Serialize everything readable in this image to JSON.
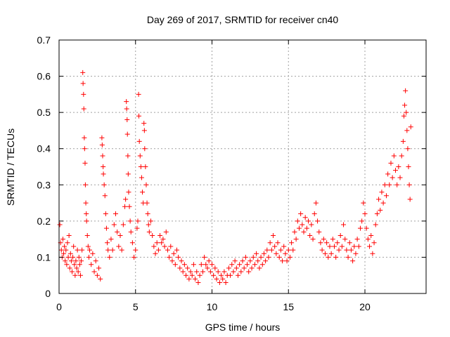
{
  "chart_data": {
    "type": "scatter",
    "title": "Day 269 of 2017, SRMTID for receiver cn40",
    "xlabel": "GPS time / hours",
    "ylabel": "SRMTID / TECUs",
    "xlim": [
      0,
      24
    ],
    "ylim": [
      0,
      0.7
    ],
    "xticks": [
      0,
      5,
      10,
      15,
      20
    ],
    "yticks": [
      0,
      0.1,
      0.2,
      0.3,
      0.4,
      0.5,
      0.6,
      0.7
    ],
    "xtick_labels": [
      "0",
      "5",
      "10",
      "15",
      "20"
    ],
    "ytick_labels": [
      "0",
      "0.1",
      "0.2",
      "0.3",
      "0.4",
      "0.5",
      "0.6",
      "0.7"
    ],
    "grid": true,
    "marker": "+",
    "colors": {
      "series": "#ff0000",
      "grid": "#a0a0a0",
      "axis": "#000000"
    },
    "series": [
      {
        "name": "SRMTID",
        "points": [
          [
            0.05,
            0.19
          ],
          [
            0.1,
            0.14
          ],
          [
            0.15,
            0.12
          ],
          [
            0.2,
            0.1
          ],
          [
            0.25,
            0.15
          ],
          [
            0.3,
            0.11
          ],
          [
            0.35,
            0.13
          ],
          [
            0.4,
            0.09
          ],
          [
            0.45,
            0.12
          ],
          [
            0.5,
            0.08
          ],
          [
            0.55,
            0.14
          ],
          [
            0.6,
            0.1
          ],
          [
            0.65,
            0.16
          ],
          [
            0.7,
            0.07
          ],
          [
            0.75,
            0.11
          ],
          [
            0.8,
            0.09
          ],
          [
            0.85,
            0.06
          ],
          [
            0.9,
            0.1
          ],
          [
            0.95,
            0.13
          ],
          [
            1.0,
            0.08
          ],
          [
            1.05,
            0.05
          ],
          [
            1.1,
            0.09
          ],
          [
            1.15,
            0.07
          ],
          [
            1.2,
            0.12
          ],
          [
            1.25,
            0.06
          ],
          [
            1.3,
            0.1
          ],
          [
            1.35,
            0.08
          ],
          [
            1.4,
            0.05
          ],
          [
            1.45,
            0.09
          ],
          [
            1.5,
            0.12
          ],
          [
            1.55,
            0.61
          ],
          [
            1.57,
            0.58
          ],
          [
            1.6,
            0.55
          ],
          [
            1.62,
            0.51
          ],
          [
            1.65,
            0.43
          ],
          [
            1.67,
            0.4
          ],
          [
            1.7,
            0.36
          ],
          [
            1.72,
            0.3
          ],
          [
            1.75,
            0.25
          ],
          [
            1.78,
            0.22
          ],
          [
            1.8,
            0.2
          ],
          [
            1.85,
            0.16
          ],
          [
            1.9,
            0.13
          ],
          [
            1.95,
            0.1
          ],
          [
            2.0,
            0.12
          ],
          [
            2.1,
            0.08
          ],
          [
            2.2,
            0.11
          ],
          [
            2.3,
            0.06
          ],
          [
            2.4,
            0.09
          ],
          [
            2.5,
            0.05
          ],
          [
            2.6,
            0.07
          ],
          [
            2.7,
            0.04
          ],
          [
            2.8,
            0.43
          ],
          [
            2.82,
            0.41
          ],
          [
            2.85,
            0.38
          ],
          [
            2.88,
            0.35
          ],
          [
            2.9,
            0.33
          ],
          [
            2.95,
            0.3
          ],
          [
            3.0,
            0.27
          ],
          [
            3.05,
            0.22
          ],
          [
            3.1,
            0.18
          ],
          [
            3.15,
            0.14
          ],
          [
            3.2,
            0.12
          ],
          [
            3.3,
            0.1
          ],
          [
            3.4,
            0.15
          ],
          [
            3.5,
            0.12
          ],
          [
            3.6,
            0.19
          ],
          [
            3.7,
            0.22
          ],
          [
            3.8,
            0.17
          ],
          [
            3.9,
            0.13
          ],
          [
            4.0,
            0.16
          ],
          [
            4.1,
            0.12
          ],
          [
            4.2,
            0.19
          ],
          [
            4.3,
            0.24
          ],
          [
            4.35,
            0.26
          ],
          [
            4.4,
            0.53
          ],
          [
            4.42,
            0.51
          ],
          [
            4.45,
            0.48
          ],
          [
            4.47,
            0.44
          ],
          [
            4.5,
            0.38
          ],
          [
            4.52,
            0.33
          ],
          [
            4.55,
            0.28
          ],
          [
            4.6,
            0.24
          ],
          [
            4.65,
            0.2
          ],
          [
            4.7,
            0.17
          ],
          [
            4.8,
            0.14
          ],
          [
            4.9,
            0.1
          ],
          [
            5.0,
            0.12
          ],
          [
            5.1,
            0.18
          ],
          [
            5.15,
            0.2
          ],
          [
            5.2,
            0.55
          ],
          [
            5.22,
            0.49
          ],
          [
            5.25,
            0.42
          ],
          [
            5.3,
            0.38
          ],
          [
            5.35,
            0.35
          ],
          [
            5.4,
            0.32
          ],
          [
            5.45,
            0.28
          ],
          [
            5.5,
            0.25
          ],
          [
            5.55,
            0.47
          ],
          [
            5.58,
            0.45
          ],
          [
            5.6,
            0.4
          ],
          [
            5.65,
            0.35
          ],
          [
            5.7,
            0.3
          ],
          [
            5.75,
            0.25
          ],
          [
            5.8,
            0.22
          ],
          [
            5.85,
            0.19
          ],
          [
            5.9,
            0.17
          ],
          [
            6.0,
            0.2
          ],
          [
            6.1,
            0.16
          ],
          [
            6.2,
            0.13
          ],
          [
            6.3,
            0.11
          ],
          [
            6.4,
            0.14
          ],
          [
            6.5,
            0.12
          ],
          [
            6.6,
            0.16
          ],
          [
            6.7,
            0.14
          ],
          [
            6.8,
            0.15
          ],
          [
            6.9,
            0.13
          ],
          [
            7.0,
            0.17
          ],
          [
            7.1,
            0.12
          ],
          [
            7.2,
            0.1
          ],
          [
            7.3,
            0.13
          ],
          [
            7.4,
            0.09
          ],
          [
            7.5,
            0.11
          ],
          [
            7.6,
            0.08
          ],
          [
            7.7,
            0.12
          ],
          [
            7.8,
            0.1
          ],
          [
            7.9,
            0.07
          ],
          [
            8.0,
            0.09
          ],
          [
            8.1,
            0.06
          ],
          [
            8.2,
            0.08
          ],
          [
            8.3,
            0.05
          ],
          [
            8.4,
            0.07
          ],
          [
            8.5,
            0.04
          ],
          [
            8.6,
            0.06
          ],
          [
            8.7,
            0.05
          ],
          [
            8.8,
            0.08
          ],
          [
            8.9,
            0.04
          ],
          [
            9.0,
            0.06
          ],
          [
            9.1,
            0.03
          ],
          [
            9.2,
            0.05
          ],
          [
            9.3,
            0.08
          ],
          [
            9.4,
            0.06
          ],
          [
            9.5,
            0.1
          ],
          [
            9.6,
            0.08
          ],
          [
            9.7,
            0.07
          ],
          [
            9.8,
            0.09
          ],
          [
            9.9,
            0.06
          ],
          [
            10.0,
            0.08
          ],
          [
            10.1,
            0.05
          ],
          [
            10.2,
            0.07
          ],
          [
            10.3,
            0.04
          ],
          [
            10.4,
            0.06
          ],
          [
            10.5,
            0.03
          ],
          [
            10.6,
            0.05
          ],
          [
            10.7,
            0.04
          ],
          [
            10.8,
            0.06
          ],
          [
            10.9,
            0.03
          ],
          [
            11.0,
            0.05
          ],
          [
            11.1,
            0.07
          ],
          [
            11.2,
            0.05
          ],
          [
            11.3,
            0.08
          ],
          [
            11.4,
            0.06
          ],
          [
            11.5,
            0.09
          ],
          [
            11.6,
            0.07
          ],
          [
            11.7,
            0.05
          ],
          [
            11.8,
            0.08
          ],
          [
            11.9,
            0.06
          ],
          [
            12.0,
            0.09
          ],
          [
            12.1,
            0.07
          ],
          [
            12.2,
            0.1
          ],
          [
            12.3,
            0.08
          ],
          [
            12.4,
            0.06
          ],
          [
            12.5,
            0.09
          ],
          [
            12.6,
            0.07
          ],
          [
            12.7,
            0.1
          ],
          [
            12.8,
            0.08
          ],
          [
            12.9,
            0.11
          ],
          [
            13.0,
            0.09
          ],
          [
            13.1,
            0.07
          ],
          [
            13.2,
            0.1
          ],
          [
            13.3,
            0.08
          ],
          [
            13.4,
            0.11
          ],
          [
            13.5,
            0.09
          ],
          [
            13.6,
            0.12
          ],
          [
            13.7,
            0.1
          ],
          [
            13.8,
            0.14
          ],
          [
            13.9,
            0.12
          ],
          [
            14.0,
            0.16
          ],
          [
            14.1,
            0.13
          ],
          [
            14.2,
            0.11
          ],
          [
            14.3,
            0.14
          ],
          [
            14.4,
            0.1
          ],
          [
            14.5,
            0.12
          ],
          [
            14.6,
            0.09
          ],
          [
            14.7,
            0.13
          ],
          [
            14.8,
            0.11
          ],
          [
            14.9,
            0.09
          ],
          [
            15.0,
            0.12
          ],
          [
            15.1,
            0.1
          ],
          [
            15.2,
            0.14
          ],
          [
            15.3,
            0.12
          ],
          [
            15.4,
            0.17
          ],
          [
            15.5,
            0.15
          ],
          [
            15.6,
            0.2
          ],
          [
            15.7,
            0.18
          ],
          [
            15.8,
            0.22
          ],
          [
            15.9,
            0.19
          ],
          [
            16.0,
            0.17
          ],
          [
            16.1,
            0.21
          ],
          [
            16.2,
            0.18
          ],
          [
            16.3,
            0.2
          ],
          [
            16.4,
            0.16
          ],
          [
            16.5,
            0.19
          ],
          [
            16.6,
            0.15
          ],
          [
            16.7,
            0.22
          ],
          [
            16.8,
            0.25
          ],
          [
            16.9,
            0.2
          ],
          [
            17.0,
            0.17
          ],
          [
            17.1,
            0.14
          ],
          [
            17.2,
            0.12
          ],
          [
            17.3,
            0.15
          ],
          [
            17.4,
            0.11
          ],
          [
            17.5,
            0.14
          ],
          [
            17.6,
            0.1
          ],
          [
            17.7,
            0.13
          ],
          [
            17.8,
            0.11
          ],
          [
            17.9,
            0.15
          ],
          [
            18.0,
            0.13
          ],
          [
            18.1,
            0.1
          ],
          [
            18.2,
            0.14
          ],
          [
            18.3,
            0.12
          ],
          [
            18.4,
            0.16
          ],
          [
            18.5,
            0.13
          ],
          [
            18.6,
            0.19
          ],
          [
            18.7,
            0.15
          ],
          [
            18.8,
            0.12
          ],
          [
            18.9,
            0.1
          ],
          [
            19.0,
            0.14
          ],
          [
            19.1,
            0.12
          ],
          [
            19.2,
            0.09
          ],
          [
            19.3,
            0.13
          ],
          [
            19.4,
            0.11
          ],
          [
            19.5,
            0.15
          ],
          [
            19.6,
            0.13
          ],
          [
            19.7,
            0.18
          ],
          [
            19.8,
            0.2
          ],
          [
            19.9,
            0.25
          ],
          [
            20.0,
            0.22
          ],
          [
            20.1,
            0.18
          ],
          [
            20.2,
            0.15
          ],
          [
            20.3,
            0.13
          ],
          [
            20.4,
            0.16
          ],
          [
            20.5,
            0.11
          ],
          [
            20.6,
            0.14
          ],
          [
            20.7,
            0.19
          ],
          [
            20.8,
            0.22
          ],
          [
            20.9,
            0.26
          ],
          [
            21.0,
            0.23
          ],
          [
            21.1,
            0.28
          ],
          [
            21.2,
            0.25
          ],
          [
            21.3,
            0.3
          ],
          [
            21.4,
            0.27
          ],
          [
            21.5,
            0.33
          ],
          [
            21.6,
            0.3
          ],
          [
            21.7,
            0.36
          ],
          [
            21.8,
            0.32
          ],
          [
            21.9,
            0.38
          ],
          [
            22.0,
            0.34
          ],
          [
            22.1,
            0.3
          ],
          [
            22.2,
            0.35
          ],
          [
            22.3,
            0.32
          ],
          [
            22.4,
            0.38
          ],
          [
            22.5,
            0.42
          ],
          [
            22.55,
            0.49
          ],
          [
            22.6,
            0.52
          ],
          [
            22.65,
            0.56
          ],
          [
            22.7,
            0.5
          ],
          [
            22.75,
            0.45
          ],
          [
            22.8,
            0.4
          ],
          [
            22.85,
            0.35
          ],
          [
            22.9,
            0.3
          ],
          [
            22.95,
            0.26
          ],
          [
            23.0,
            0.46
          ]
        ]
      }
    ]
  }
}
